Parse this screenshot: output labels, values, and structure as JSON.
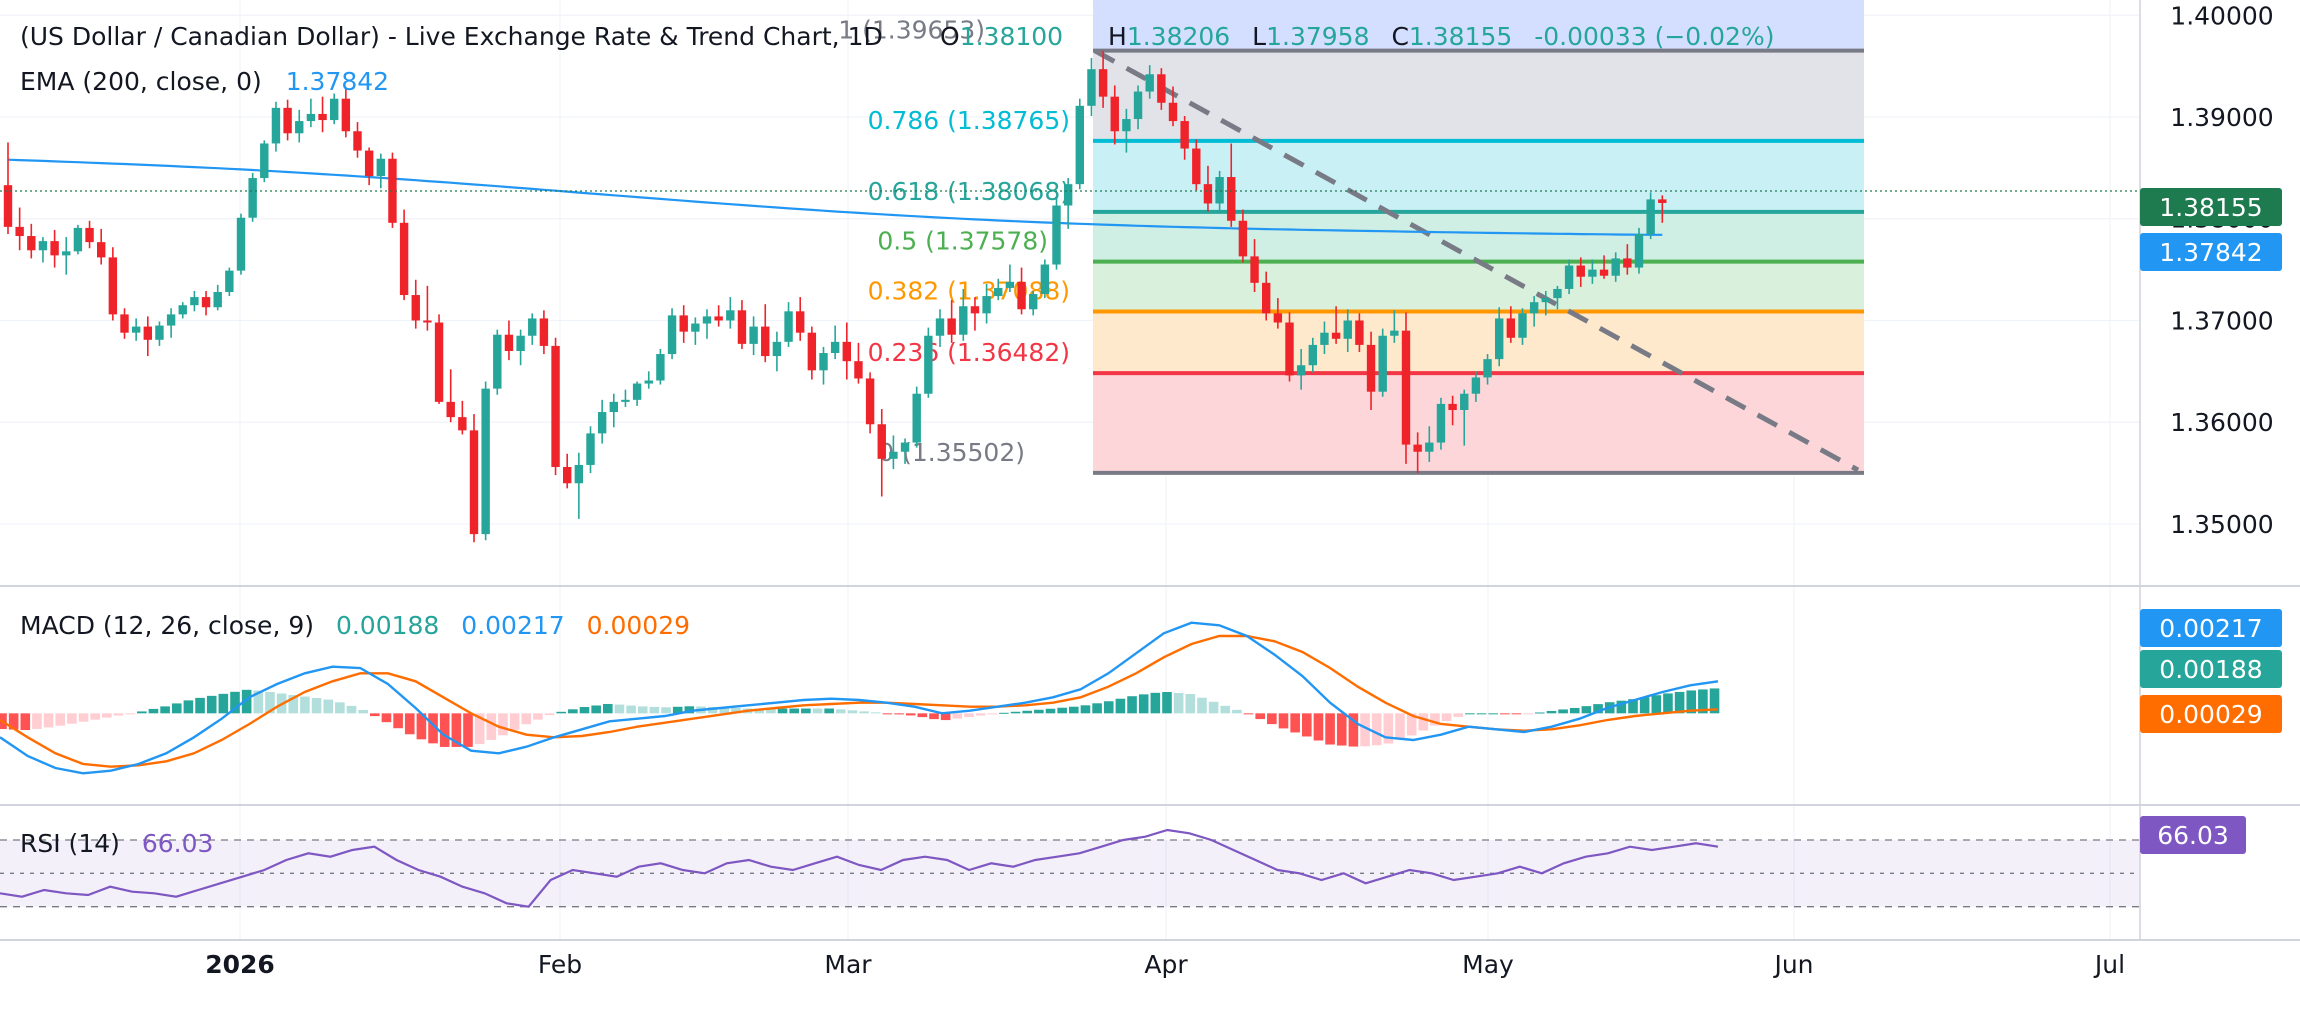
{
  "header": {
    "title": "(US Dollar / Canadian Dollar) - Live Exchange Rate & Trend Chart, 1D",
    "open_label": "O",
    "open_value": "1.38100",
    "high_label": "H",
    "high_value": "1.38206",
    "low_label": "L",
    "low_value": "1.37958",
    "close_label": "C",
    "close_value": "1.38155",
    "change": "-0.00033 (−0.02%)",
    "ema_label": "EMA (200, close, 0)",
    "ema_value": "1.37842"
  },
  "macd_header": {
    "label": "MACD (12, 26, close, 9)",
    "histogram_value": "0.00188",
    "macd_value": "0.00217",
    "signal_value": "0.00029"
  },
  "rsi_header": {
    "label": "RSI (14)",
    "value": "66.03"
  },
  "price_badges": {
    "last": "1.38155",
    "ema": "1.37842"
  },
  "macd_badges": [
    "0.00217",
    "0.00188",
    "0.00029"
  ],
  "rsi_badge": "66.03",
  "colors": {
    "up": "#26a69a",
    "down": "#ef232a",
    "ema": "#2196f3",
    "macd": "#2196f3",
    "signal": "#ff6d00",
    "rsi": "#7e57c2",
    "fib_786": "#00bcd4",
    "fib_618": "#26a69a",
    "fib_05": "#4caf50",
    "fib_382": "#ff9800",
    "fib_236": "#f23645",
    "fib_0": "#787b86"
  },
  "chart_data": [
    {
      "type": "candlestick",
      "title": "(US Dollar / Canadian Dollar) - Live Exchange Rate & Trend Chart, 1D",
      "y_ticks": [
        "1.40000",
        "1.39000",
        "1.38000",
        "1.37000",
        "1.36000",
        "1.35000"
      ],
      "x_ticks": [
        "2026",
        "Feb",
        "Mar",
        "Apr",
        "May",
        "Jun",
        "Jul"
      ],
      "ylim": [
        1.344,
        1.4015
      ],
      "candles_ohlc": [
        [
          1.3833,
          1.3875,
          1.3785,
          1.3792
        ],
        [
          1.3792,
          1.3811,
          1.3769,
          1.3783
        ],
        [
          1.3783,
          1.3795,
          1.3761,
          1.3769
        ],
        [
          1.3769,
          1.3782,
          1.3757,
          1.3778
        ],
        [
          1.3778,
          1.3789,
          1.3752,
          1.3764
        ],
        [
          1.3764,
          1.3782,
          1.3745,
          1.3768
        ],
        [
          1.3768,
          1.3794,
          1.3765,
          1.3791
        ],
        [
          1.3791,
          1.3798,
          1.3771,
          1.3777
        ],
        [
          1.3777,
          1.379,
          1.3755,
          1.3762
        ],
        [
          1.3762,
          1.3772,
          1.37,
          1.3706
        ],
        [
          1.3706,
          1.3712,
          1.3682,
          1.3688
        ],
        [
          1.3688,
          1.3702,
          1.368,
          1.3694
        ],
        [
          1.3694,
          1.3704,
          1.3665,
          1.3681
        ],
        [
          1.3681,
          1.3699,
          1.3675,
          1.3695
        ],
        [
          1.3695,
          1.3712,
          1.3683,
          1.3706
        ],
        [
          1.3706,
          1.3718,
          1.3702,
          1.3715
        ],
        [
          1.3715,
          1.3729,
          1.3709,
          1.3723
        ],
        [
          1.3723,
          1.3729,
          1.3705,
          1.3713
        ],
        [
          1.3713,
          1.3735,
          1.371,
          1.3728
        ],
        [
          1.3728,
          1.3752,
          1.3724,
          1.3749
        ],
        [
          1.3749,
          1.3805,
          1.3745,
          1.3801
        ],
        [
          1.3801,
          1.3845,
          1.3797,
          1.384
        ],
        [
          1.384,
          1.3877,
          1.3836,
          1.3874
        ],
        [
          1.3874,
          1.3915,
          1.3866,
          1.3909
        ],
        [
          1.3909,
          1.3917,
          1.3877,
          1.3884
        ],
        [
          1.3884,
          1.3907,
          1.3875,
          1.3896
        ],
        [
          1.3896,
          1.3918,
          1.389,
          1.3903
        ],
        [
          1.3903,
          1.392,
          1.3885,
          1.3897
        ],
        [
          1.3897,
          1.3923,
          1.3893,
          1.3918
        ],
        [
          1.3918,
          1.3929,
          1.388,
          1.3886
        ],
        [
          1.3886,
          1.3895,
          1.386,
          1.3867
        ],
        [
          1.3867,
          1.387,
          1.3833,
          1.3842
        ],
        [
          1.3842,
          1.3864,
          1.383,
          1.3859
        ],
        [
          1.3859,
          1.3865,
          1.3791,
          1.3796
        ],
        [
          1.3796,
          1.3809,
          1.372,
          1.3725
        ],
        [
          1.3725,
          1.374,
          1.3692,
          1.37
        ],
        [
          1.37,
          1.3734,
          1.369,
          1.3698
        ],
        [
          1.3698,
          1.3706,
          1.3618,
          1.362
        ],
        [
          1.362,
          1.3652,
          1.36,
          1.3605
        ],
        [
          1.3605,
          1.3621,
          1.3588,
          1.3592
        ],
        [
          1.3592,
          1.3608,
          1.3482,
          1.349
        ],
        [
          1.349,
          1.364,
          1.3484,
          1.3633
        ],
        [
          1.3633,
          1.3691,
          1.3627,
          1.3686
        ],
        [
          1.3686,
          1.37,
          1.3661,
          1.367
        ],
        [
          1.367,
          1.3691,
          1.3656,
          1.3685
        ],
        [
          1.3685,
          1.3707,
          1.3676,
          1.3702
        ],
        [
          1.3702,
          1.371,
          1.3667,
          1.3675
        ],
        [
          1.3675,
          1.3683,
          1.3548,
          1.3556
        ],
        [
          1.3556,
          1.3569,
          1.3535,
          1.354
        ],
        [
          1.354,
          1.357,
          1.3505,
          1.3558
        ],
        [
          1.3558,
          1.3596,
          1.355,
          1.3589
        ],
        [
          1.3589,
          1.3622,
          1.3579,
          1.361
        ],
        [
          1.361,
          1.3628,
          1.3595,
          1.362
        ],
        [
          1.362,
          1.3632,
          1.3615,
          1.3622
        ],
        [
          1.3622,
          1.364,
          1.3616,
          1.3638
        ],
        [
          1.3638,
          1.365,
          1.3633,
          1.3641
        ],
        [
          1.3641,
          1.3672,
          1.3637,
          1.3667
        ],
        [
          1.3667,
          1.3712,
          1.3662,
          1.3705
        ],
        [
          1.3705,
          1.3715,
          1.3678,
          1.3689
        ],
        [
          1.3689,
          1.3703,
          1.3676,
          1.3697
        ],
        [
          1.3697,
          1.3711,
          1.3682,
          1.3704
        ],
        [
          1.3704,
          1.3715,
          1.3694,
          1.37
        ],
        [
          1.37,
          1.3723,
          1.3692,
          1.371
        ],
        [
          1.371,
          1.372,
          1.3672,
          1.3677
        ],
        [
          1.3677,
          1.3704,
          1.3666,
          1.3694
        ],
        [
          1.3694,
          1.3716,
          1.3659,
          1.3665
        ],
        [
          1.3665,
          1.3689,
          1.365,
          1.3679
        ],
        [
          1.3679,
          1.3718,
          1.3674,
          1.3709
        ],
        [
          1.3709,
          1.3723,
          1.368,
          1.3688
        ],
        [
          1.3688,
          1.3694,
          1.3642,
          1.3651
        ],
        [
          1.3651,
          1.3674,
          1.3637,
          1.3668
        ],
        [
          1.3668,
          1.3695,
          1.3662,
          1.3679
        ],
        [
          1.3679,
          1.3698,
          1.3642,
          1.366
        ],
        [
          1.366,
          1.3678,
          1.3638,
          1.3643
        ],
        [
          1.3643,
          1.3649,
          1.3589,
          1.3598
        ],
        [
          1.3598,
          1.3613,
          1.3527,
          1.3564
        ],
        [
          1.3564,
          1.3587,
          1.3554,
          1.3571
        ],
        [
          1.3571,
          1.3584,
          1.3559,
          1.358
        ],
        [
          1.358,
          1.3635,
          1.3575,
          1.3628
        ],
        [
          1.3628,
          1.3693,
          1.3624,
          1.3685
        ],
        [
          1.3685,
          1.3711,
          1.3674,
          1.3702
        ],
        [
          1.3702,
          1.372,
          1.3678,
          1.3686
        ],
        [
          1.3686,
          1.3731,
          1.368,
          1.3714
        ],
        [
          1.3714,
          1.3723,
          1.369,
          1.3707
        ],
        [
          1.3707,
          1.3736,
          1.3697,
          1.3724
        ],
        [
          1.3724,
          1.3741,
          1.372,
          1.3732
        ],
        [
          1.3732,
          1.3755,
          1.3728,
          1.3738
        ],
        [
          1.3738,
          1.3752,
          1.3706,
          1.3711
        ],
        [
          1.3711,
          1.3729,
          1.3705,
          1.3726
        ],
        [
          1.3726,
          1.376,
          1.3722,
          1.3755
        ],
        [
          1.3755,
          1.3822,
          1.375,
          1.3813
        ],
        [
          1.3813,
          1.384,
          1.379,
          1.3834
        ],
        [
          1.3834,
          1.3918,
          1.3829,
          1.3911
        ],
        [
          1.3911,
          1.3958,
          1.3901,
          1.3947
        ],
        [
          1.3947,
          1.3965,
          1.3909,
          1.392
        ],
        [
          1.392,
          1.3931,
          1.3873,
          1.3886
        ],
        [
          1.3886,
          1.3908,
          1.3865,
          1.3898
        ],
        [
          1.3898,
          1.3931,
          1.3888,
          1.3925
        ],
        [
          1.3925,
          1.3951,
          1.3918,
          1.3942
        ],
        [
          1.3942,
          1.3948,
          1.3907,
          1.3914
        ],
        [
          1.3914,
          1.393,
          1.3891,
          1.3896
        ],
        [
          1.3896,
          1.3901,
          1.3858,
          1.3869
        ],
        [
          1.3869,
          1.3878,
          1.3828,
          1.3834
        ],
        [
          1.3834,
          1.3852,
          1.3807,
          1.3815
        ],
        [
          1.3815,
          1.3847,
          1.3806,
          1.3841
        ],
        [
          1.3841,
          1.3874,
          1.3792,
          1.3798
        ],
        [
          1.3798,
          1.3809,
          1.3757,
          1.3763
        ],
        [
          1.3763,
          1.378,
          1.3728,
          1.3737
        ],
        [
          1.3737,
          1.3748,
          1.37,
          1.3707
        ],
        [
          1.3707,
          1.3722,
          1.3692,
          1.3698
        ],
        [
          1.3698,
          1.3708,
          1.364,
          1.3646
        ],
        [
          1.3646,
          1.3672,
          1.3632,
          1.3656
        ],
        [
          1.3656,
          1.3683,
          1.3649,
          1.3676
        ],
        [
          1.3676,
          1.3699,
          1.3667,
          1.3688
        ],
        [
          1.3688,
          1.3714,
          1.3677,
          1.3682
        ],
        [
          1.3682,
          1.3711,
          1.3669,
          1.37
        ],
        [
          1.37,
          1.3707,
          1.3669,
          1.3676
        ],
        [
          1.3676,
          1.3689,
          1.3612,
          1.363
        ],
        [
          1.363,
          1.3692,
          1.3625,
          1.3685
        ],
        [
          1.3685,
          1.371,
          1.3678,
          1.369
        ],
        [
          1.369,
          1.3708,
          1.3559,
          1.3578
        ],
        [
          1.3578,
          1.359,
          1.355,
          1.3571
        ],
        [
          1.3571,
          1.3596,
          1.3561,
          1.358
        ],
        [
          1.358,
          1.3624,
          1.3573,
          1.3618
        ],
        [
          1.3618,
          1.3626,
          1.3597,
          1.3612
        ],
        [
          1.3612,
          1.3632,
          1.3577,
          1.3628
        ],
        [
          1.3628,
          1.365,
          1.362,
          1.3644
        ],
        [
          1.3644,
          1.3667,
          1.3637,
          1.3662
        ],
        [
          1.3662,
          1.3713,
          1.3655,
          1.3702
        ],
        [
          1.3702,
          1.3714,
          1.3678,
          1.3683
        ],
        [
          1.3683,
          1.3712,
          1.3676,
          1.3707
        ],
        [
          1.3707,
          1.3724,
          1.3694,
          1.3718
        ],
        [
          1.3718,
          1.3729,
          1.3705,
          1.3722
        ],
        [
          1.3722,
          1.3734,
          1.3711,
          1.3731
        ],
        [
          1.3731,
          1.376,
          1.3726,
          1.3754
        ],
        [
          1.3754,
          1.3762,
          1.3733,
          1.3743
        ],
        [
          1.3743,
          1.376,
          1.3736,
          1.375
        ],
        [
          1.375,
          1.3764,
          1.3741,
          1.3744
        ],
        [
          1.3744,
          1.3767,
          1.3738,
          1.3761
        ],
        [
          1.3761,
          1.3775,
          1.3745,
          1.3752
        ],
        [
          1.3752,
          1.3791,
          1.3746,
          1.3785
        ],
        [
          1.3785,
          1.3826,
          1.378,
          1.3819
        ],
        [
          1.3819,
          1.3823,
          1.3796,
          1.38155
        ]
      ],
      "ema_200_start": 1.3858,
      "ema_200_end": 1.37842,
      "fibonacci_retracement": [
        {
          "level": "1",
          "value": "1.39653",
          "price": 1.39653
        },
        {
          "level": "0.786",
          "value": "1.38765",
          "price": 1.38765
        },
        {
          "level": "0.618",
          "value": "1.38068",
          "price": 1.38068
        },
        {
          "level": "0.5",
          "value": "1.37578",
          "price": 1.37578
        },
        {
          "level": "0.382",
          "value": "1.37088",
          "price": 1.37088
        },
        {
          "level": "0.236",
          "value": "1.36482",
          "price": 1.36482
        },
        {
          "level": "0",
          "value": "1.35502",
          "price": 1.35502
        }
      ],
      "trendline": {
        "from_price": 1.3965,
        "to_price": 1.3553
      }
    },
    {
      "type": "line",
      "title": "MACD (12, 26, close, 9)",
      "series": [
        {
          "name": "MACD",
          "values": [
            -0.0018,
            -0.0032,
            -0.0041,
            -0.0045,
            -0.0043,
            -0.0038,
            -0.003,
            -0.0018,
            -0.0004,
            0.0012,
            0.0022,
            0.003,
            0.0035,
            0.0034,
            0.0022,
            0.0004,
            -0.0016,
            -0.0028,
            -0.003,
            -0.0025,
            -0.0018,
            -0.0012,
            -0.0006,
            -0.0004,
            -0.0002,
            0.0002,
            0.0004,
            0.0006,
            0.0008,
            0.001,
            0.0011,
            0.001,
            0.0008,
            0.0005,
            0.0,
            0.0002,
            0.0005,
            0.0008,
            0.0012,
            0.0018,
            0.003,
            0.0045,
            0.006,
            0.0068,
            0.0066,
            0.0058,
            0.0044,
            0.0028,
            0.0008,
            -0.0008,
            -0.0018,
            -0.002,
            -0.0016,
            -0.001,
            -0.0012,
            -0.0014,
            -0.001,
            -0.0004,
            0.0004,
            0.001,
            0.0016,
            0.0021,
            0.0024
          ]
        },
        {
          "name": "Signal",
          "values": [
            -0.0005,
            -0.0018,
            -0.003,
            -0.0038,
            -0.004,
            -0.0039,
            -0.0036,
            -0.003,
            -0.002,
            -0.0008,
            0.0005,
            0.0016,
            0.0024,
            0.003,
            0.003,
            0.0024,
            0.0012,
            0.0,
            -0.001,
            -0.0016,
            -0.0018,
            -0.0017,
            -0.0014,
            -0.001,
            -0.0007,
            -0.0004,
            -0.0001,
            0.0002,
            0.0004,
            0.0006,
            0.0007,
            0.0008,
            0.0008,
            0.0007,
            0.0006,
            0.0005,
            0.0005,
            0.0006,
            0.0008,
            0.0012,
            0.002,
            0.003,
            0.0042,
            0.0052,
            0.0058,
            0.0058,
            0.0054,
            0.0046,
            0.0034,
            0.002,
            0.0008,
            -0.0002,
            -0.0008,
            -0.001,
            -0.0012,
            -0.0013,
            -0.0012,
            -0.0009,
            -0.0005,
            -0.0002,
            0.0,
            0.0002,
            0.0003
          ]
        }
      ],
      "ylim": [
        -0.0065,
        0.0085
      ]
    },
    {
      "type": "line",
      "title": "RSI (14)",
      "series": [
        {
          "name": "RSI",
          "values": [
            38,
            36,
            40,
            38,
            37,
            42,
            39,
            38,
            36,
            40,
            44,
            48,
            52,
            58,
            62,
            60,
            64,
            66,
            58,
            52,
            48,
            42,
            38,
            32,
            30,
            46,
            52,
            50,
            48,
            54,
            56,
            52,
            50,
            56,
            58,
            54,
            52,
            56,
            60,
            55,
            52,
            58,
            60,
            58,
            52,
            56,
            54,
            58,
            60,
            62,
            66,
            70,
            72,
            76,
            74,
            70,
            64,
            58,
            52,
            50,
            46,
            50,
            44,
            48,
            52,
            50,
            46,
            48,
            50,
            54,
            50,
            56,
            60,
            62,
            66,
            64,
            66,
            68,
            66
          ]
        }
      ],
      "ylim": [
        25,
        85
      ]
    }
  ]
}
